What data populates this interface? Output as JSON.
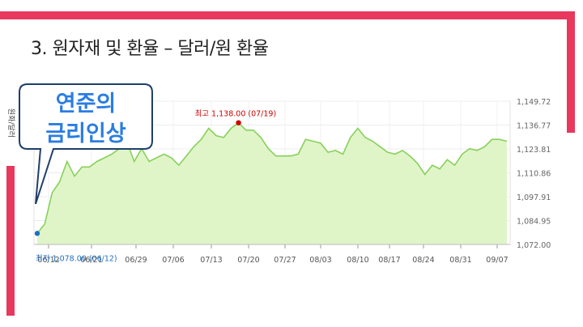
{
  "slide": {
    "title": "3. 원자재 및 환율 – 달러/원 환율"
  },
  "callout": {
    "line1": "연준의",
    "line2": "금리인상"
  },
  "colors": {
    "accent_bar": "#e8385e",
    "area_fill": "#dff5c8",
    "line": "#88d05a",
    "max_marker": "#cc0000",
    "min_marker": "#1f6fc0",
    "callout_text": "#2a7de1",
    "callout_border": "#1f3f6a"
  },
  "chart_data": {
    "type": "area",
    "ylabel": "원화/달러",
    "ylim": [
      1072,
      1149.72
    ],
    "yticks": [
      "1,149.72",
      "1,136.77",
      "1,123.81",
      "1,110.86",
      "1,097.91",
      "1,084.95",
      "1,072.00"
    ],
    "xticks": [
      "06/12",
      "06/21",
      "06/29",
      "07/06",
      "07/13",
      "07/20",
      "07/27",
      "08/03",
      "08/10",
      "08/17",
      "08/24",
      "08/31",
      "09/07"
    ],
    "grid": true,
    "max_label": "최고 1,138.00 (07/19)",
    "min_label": "최저 1,078.00 (06/12)",
    "max_point": {
      "date": "07/19",
      "value": 1138.0
    },
    "min_point": {
      "date": "06/12",
      "value": 1078.0
    },
    "series": [
      {
        "values": [
          1078.0,
          1083,
          1100,
          1106,
          1117,
          1109,
          1114,
          1114,
          1117,
          1119,
          1121,
          1124,
          1128,
          1117,
          1124,
          1117,
          1119,
          1121,
          1119,
          1115,
          1120,
          1125,
          1129,
          1135,
          1131,
          1130,
          1135,
          1138,
          1134,
          1134,
          1130,
          1124,
          1120,
          1120,
          1120,
          1121,
          1129,
          1128,
          1127,
          1122,
          1123,
          1121,
          1130,
          1135,
          1130,
          1128,
          1125,
          1122,
          1121,
          1123,
          1120,
          1116,
          1110,
          1115,
          1113,
          1118,
          1115,
          1121,
          1124,
          1123,
          1125,
          1129,
          1129,
          1128
        ]
      }
    ]
  }
}
